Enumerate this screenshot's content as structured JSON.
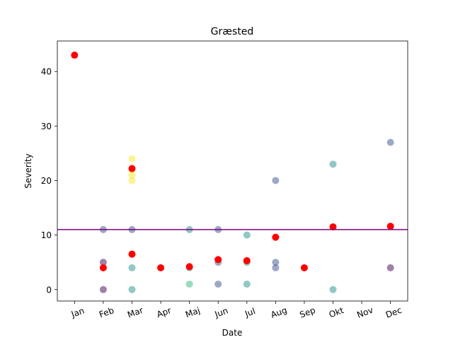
{
  "chart_data": {
    "type": "scatter",
    "title": "Græsted",
    "xlabel": "Date",
    "ylabel": "Severity",
    "categories": [
      "Jan",
      "Feb",
      "Mar",
      "Apr",
      "Maj",
      "Jun",
      "Jul",
      "Aug",
      "Sep",
      "Okt",
      "Nov",
      "Dec"
    ],
    "ylim": [
      -2.1,
      45.6
    ],
    "yticks": [
      0,
      10,
      20,
      30,
      40
    ],
    "grid": false,
    "legend": "none",
    "threshold": {
      "value": 11,
      "color": "#800080"
    },
    "series": [
      {
        "color": "#440154",
        "points": [
          {
            "x": "Feb",
            "y": 0
          },
          {
            "x": "Feb",
            "y": 5
          },
          {
            "x": "Dec",
            "y": 4
          }
        ]
      },
      {
        "color": "#3b528b",
        "points": [
          {
            "x": "Feb",
            "y": 11
          },
          {
            "x": "Mar",
            "y": 11
          },
          {
            "x": "Jun",
            "y": 11
          },
          {
            "x": "Jun",
            "y": 5
          },
          {
            "x": "Jun",
            "y": 1
          },
          {
            "x": "Aug",
            "y": 20
          },
          {
            "x": "Aug",
            "y": 5
          },
          {
            "x": "Aug",
            "y": 4
          },
          {
            "x": "Dec",
            "y": 27
          }
        ]
      },
      {
        "color": "#21918c",
        "points": [
          {
            "x": "Mar",
            "y": 4
          },
          {
            "x": "Mar",
            "y": 0
          },
          {
            "x": "Maj",
            "y": 11
          },
          {
            "x": "Maj",
            "y": 4
          },
          {
            "x": "Jul",
            "y": 10
          },
          {
            "x": "Jul",
            "y": 5
          },
          {
            "x": "Jul",
            "y": 1
          },
          {
            "x": "Okt",
            "y": 23
          },
          {
            "x": "Okt",
            "y": 0
          }
        ]
      },
      {
        "color": "#35b779",
        "points": [
          {
            "x": "Maj",
            "y": 1
          }
        ]
      },
      {
        "color": "#fde725",
        "points": [
          {
            "x": "Mar",
            "y": 24
          },
          {
            "x": "Mar",
            "y": 22
          },
          {
            "x": "Mar",
            "y": 21
          },
          {
            "x": "Mar",
            "y": 20
          }
        ]
      },
      {
        "color": "#ff0000",
        "points": [
          {
            "x": "Jan",
            "y": 43
          },
          {
            "x": "Feb",
            "y": 4
          },
          {
            "x": "Mar",
            "y": 22.2
          },
          {
            "x": "Mar",
            "y": 6.5
          },
          {
            "x": "Apr",
            "y": 4
          },
          {
            "x": "Maj",
            "y": 4.2
          },
          {
            "x": "Jun",
            "y": 5.5
          },
          {
            "x": "Jul",
            "y": 5.3
          },
          {
            "x": "Aug",
            "y": 9.6
          },
          {
            "x": "Sep",
            "y": 4
          },
          {
            "x": "Okt",
            "y": 11.5
          },
          {
            "x": "Dec",
            "y": 11.6
          }
        ]
      }
    ]
  }
}
